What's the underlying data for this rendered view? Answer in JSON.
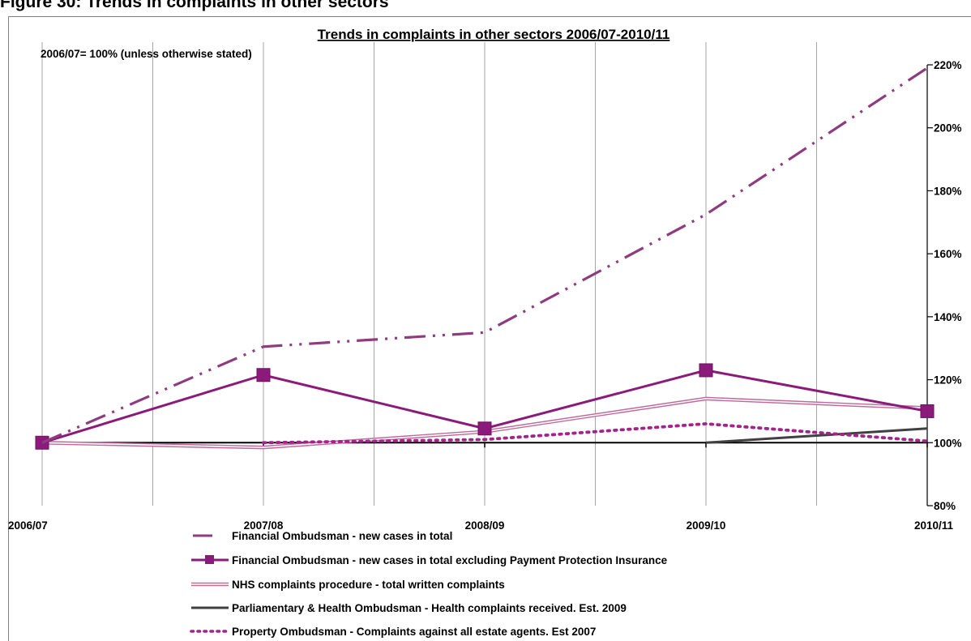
{
  "figure": {
    "heading": "Figure 30: Trends in complaints in other sectors"
  },
  "chart_data": {
    "type": "line",
    "title": "Trends in complaints in other sectors  2006/07-2010/11",
    "subtitle": "2006/07= 100% (unless otherwise stated)",
    "categories": [
      "2006/07",
      "2007/08",
      "2008/09",
      "2009/10",
      "2010/11"
    ],
    "ylim": [
      80,
      220
    ],
    "yticks": [
      80,
      100,
      120,
      140,
      160,
      180,
      200,
      220
    ],
    "ytick_labels": [
      "80%",
      "100%",
      "120%",
      "140%",
      "160%",
      "180%",
      "200%",
      "220%"
    ],
    "y_axis_side": "right",
    "vertical_gridlines": true,
    "legend_placement": "bottom",
    "series": [
      {
        "name": "Financial Ombudsman - new cases in total",
        "values": [
          100,
          130.5,
          135,
          172.5,
          219
        ],
        "color": "#8e3b7f",
        "style": "dash-dot-dot"
      },
      {
        "name": "Financial Ombudsman - new cases in total excluding Payment Protection Insurance",
        "values": [
          100,
          121.5,
          104.5,
          123,
          110
        ],
        "color": "#8b1a7b",
        "style": "solid-square"
      },
      {
        "name": "NHS complaints procedure - total written complaints",
        "values": [
          100,
          98.5,
          103.5,
          114,
          111
        ],
        "color": "#c06a9c",
        "style": "double"
      },
      {
        "name": "Parliamentary & Health Ombudsman - Health complaints received. Est. 2009",
        "values": [
          null,
          null,
          null,
          100,
          104.5
        ],
        "color": "#404040",
        "style": "solid"
      },
      {
        "name": "Property Ombudsman - Complaints against all estate agents. Est 2007",
        "values": [
          null,
          100,
          101,
          106,
          100.5
        ],
        "color": "#a3228b",
        "style": "dotted"
      }
    ]
  }
}
